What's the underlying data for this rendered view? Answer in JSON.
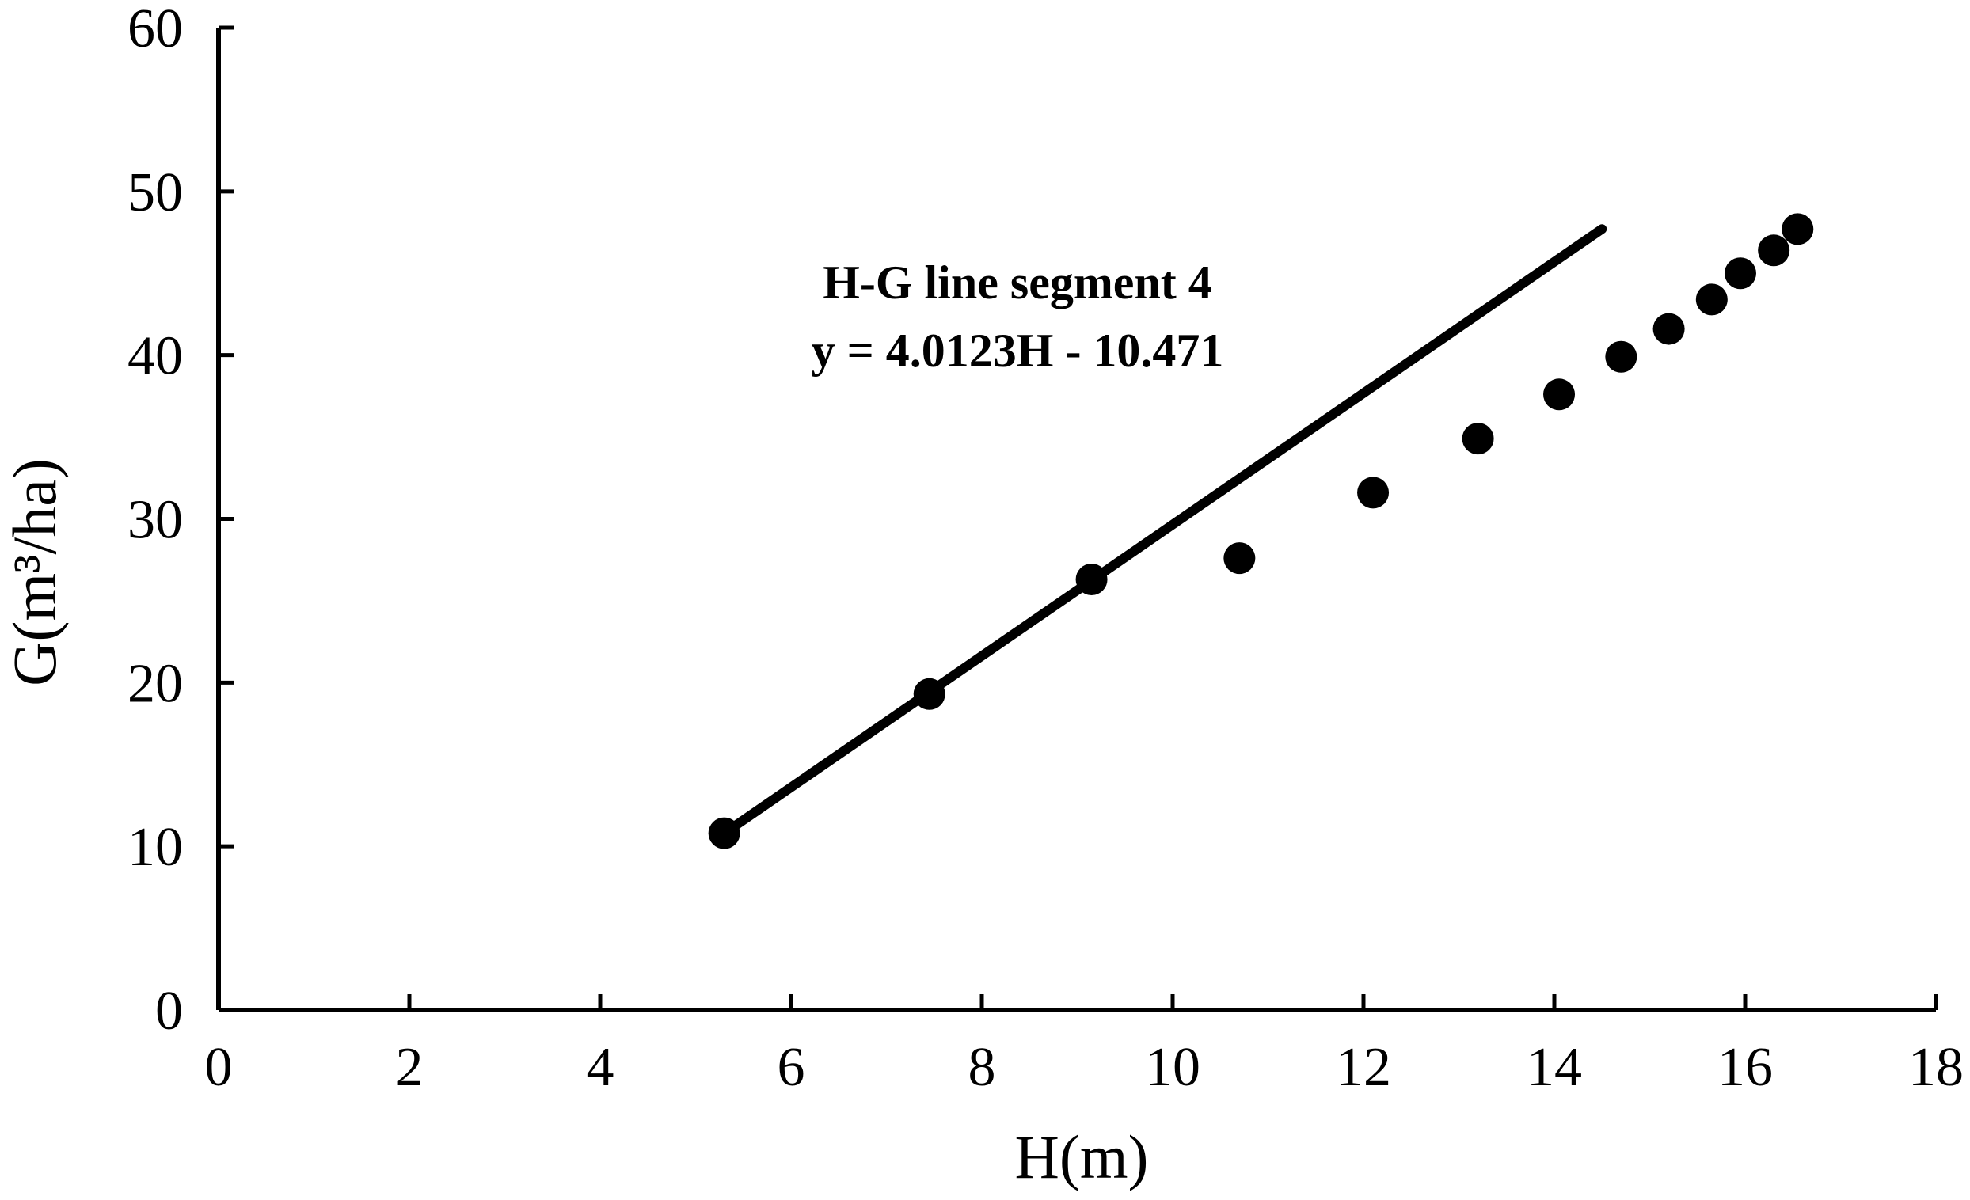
{
  "chart_data": {
    "type": "scatter",
    "xlabel": "H(m)",
    "ylabel": "G(m³/ha)",
    "xlim": [
      0,
      18
    ],
    "ylim": [
      0,
      60
    ],
    "x_ticks": [
      "0",
      "2",
      "4",
      "6",
      "8",
      "10",
      "12",
      "14",
      "16",
      "18"
    ],
    "y_ticks": [
      "0",
      "10",
      "20",
      "30",
      "40",
      "50",
      "60"
    ],
    "grid": false,
    "legend": "none",
    "points": {
      "x": [
        5.3,
        7.45,
        9.15,
        10.7,
        12.1,
        13.2,
        14.05,
        14.7,
        15.2,
        15.65,
        15.95,
        16.3,
        16.55
      ],
      "y": [
        10.8,
        19.3,
        26.3,
        27.6,
        31.6,
        34.9,
        37.6,
        39.9,
        41.6,
        43.4,
        45.0,
        46.4,
        47.7
      ]
    },
    "fit_line": {
      "slope": 4.0123,
      "intercept": -10.471,
      "x_range": [
        5.3,
        14.5
      ]
    },
    "annotation": {
      "line1": "H-G line segment 4",
      "line2": "y = 4.0123H - 10.471"
    },
    "colors": {
      "marks": "#000000",
      "background": "#ffffff"
    }
  }
}
